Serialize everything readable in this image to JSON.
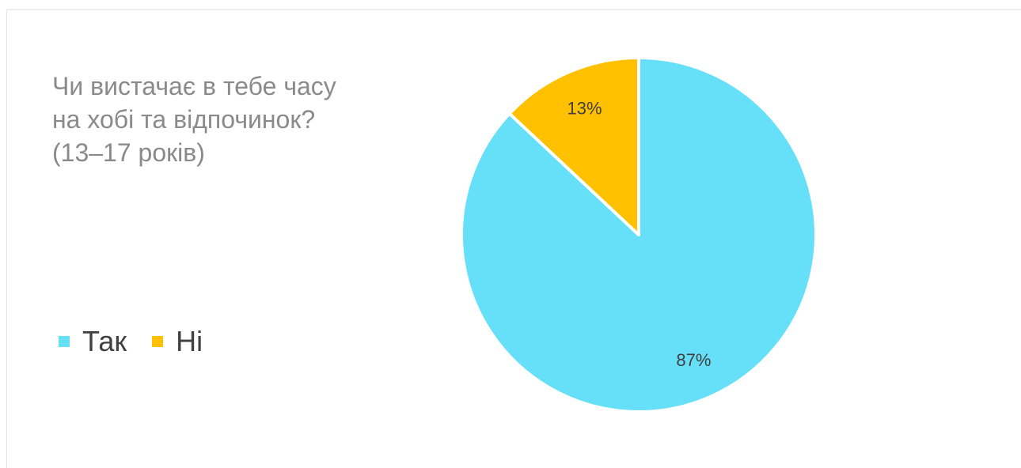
{
  "chart_data": {
    "type": "pie",
    "title": "Чи вистачає в тебе часу\nна хобі та відпочинок?\n (13–17 років)",
    "legend_placement": "bottom-left",
    "slices": [
      {
        "name": "Так",
        "value": 87,
        "label": "87%",
        "color": "#66DFF8"
      },
      {
        "name": "Ні",
        "value": 13,
        "label": "13%",
        "color": "#FFC000"
      }
    ]
  }
}
